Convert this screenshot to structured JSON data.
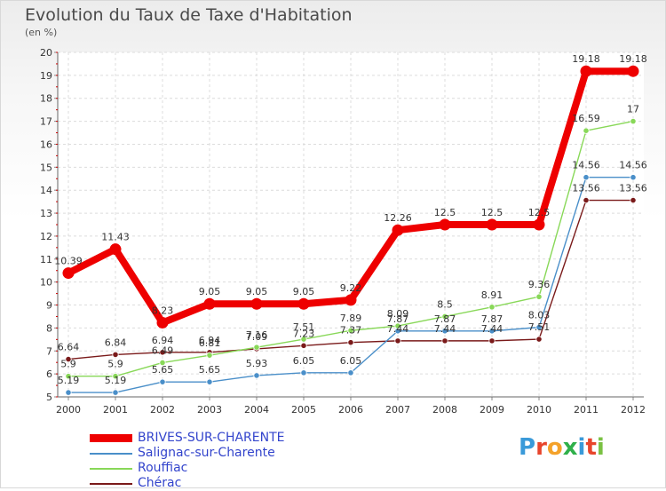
{
  "header": {
    "title": "Evolution du Taux de Taxe d'Habitation",
    "subtitle": "(en %)"
  },
  "logo": {
    "letters": [
      "P",
      "r",
      "o",
      "x",
      "i",
      "t",
      "i"
    ],
    "colors": [
      "#3a9ad9",
      "#e8452c",
      "#f4a22a",
      "#2fb04a",
      "#3a9ad9",
      "#e8452c",
      "#7ac143"
    ]
  },
  "chart_data": {
    "type": "line",
    "title": "Evolution du Taux de Taxe d'Habitation",
    "subtitle": "(en %)",
    "xlabel": "",
    "ylabel": "",
    "categories": [
      "2000",
      "2001",
      "2002",
      "2003",
      "2004",
      "2005",
      "2006",
      "2007",
      "2008",
      "2009",
      "2010",
      "2011",
      "2012"
    ],
    "ylim": [
      5,
      20
    ],
    "yticks": [
      "5",
      "6",
      "7",
      "8",
      "9",
      "10",
      "11",
      "12",
      "13",
      "14",
      "15",
      "16",
      "17",
      "18",
      "19",
      "20"
    ],
    "grid": true,
    "legend_position": "bottom-left",
    "series": [
      {
        "name": "BRIVES-SUR-CHARENTE",
        "color": "#ee0000",
        "values": [
          10.39,
          11.43,
          8.23,
          9.05,
          9.05,
          9.05,
          9.22,
          12.26,
          12.5,
          12.5,
          12.5,
          19.18,
          19.18
        ],
        "labels": [
          "10.39",
          "11.43",
          "8.23",
          "9.05",
          "9.05",
          "9.05",
          "9.22",
          "12.26",
          "12.5",
          "12.5",
          "12.5",
          "19.18",
          "19.18"
        ]
      },
      {
        "name": "Salignac-sur-Charente",
        "color": "#4a8fc9",
        "values": [
          5.19,
          5.19,
          5.65,
          5.65,
          5.93,
          6.05,
          6.05,
          7.87,
          7.87,
          7.87,
          8.03,
          14.56,
          14.56
        ],
        "labels": [
          "5.19",
          "5.19",
          "5.65",
          "5.65",
          "5.93",
          "6.05",
          "6.05",
          "7.87",
          "7.87",
          "7.87",
          "8.03",
          "14.56",
          "14.56"
        ]
      },
      {
        "name": "Rouffiac",
        "color": "#88d858",
        "values": [
          5.9,
          5.9,
          6.49,
          6.81,
          7.16,
          7.51,
          7.89,
          8.09,
          8.5,
          8.91,
          9.36,
          16.59,
          17
        ],
        "labels": [
          "5.9",
          "5.9",
          "6.49",
          "6.81",
          "7.16",
          "7.51",
          "7.89",
          "8.09",
          "8.5",
          "8.91",
          "9.36",
          "16.59",
          "17"
        ]
      },
      {
        "name": "Chérac",
        "color": "#7a1a1a",
        "values": [
          6.64,
          6.84,
          6.94,
          6.94,
          7.09,
          7.23,
          7.37,
          7.44,
          7.44,
          7.44,
          7.51,
          13.56,
          13.56
        ],
        "labels": [
          "6.64",
          "6.84",
          "6.94",
          "6.94",
          "7.09",
          "7.23",
          "7.37",
          "7.44",
          "7.44",
          "7.44",
          "7.51",
          "13.56",
          "13.56"
        ]
      }
    ]
  }
}
